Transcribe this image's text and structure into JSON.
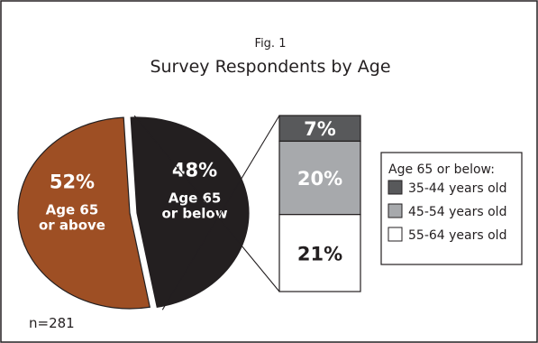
{
  "chart_data": {
    "type": "pie",
    "figure_label": "Fig. 1",
    "title": "Survey Respondents by Age",
    "note": "n=281",
    "slices": [
      {
        "percent_label": "52%",
        "value": 52,
        "label_line1": "Age 65",
        "label_line2": "or above",
        "color": "#9e4f24"
      },
      {
        "percent_label": "48%",
        "value": 48,
        "label_line1": "Age 65",
        "label_line2": "or below",
        "color": "#231f20"
      }
    ],
    "breakdown": {
      "of": "Age 65 or below",
      "segments": [
        {
          "percent_label": "7%",
          "value": 7,
          "category": "35-44 years old",
          "color": "#58595b",
          "text_color": "#ffffff"
        },
        {
          "percent_label": "20%",
          "value": 20,
          "category": "45-54 years old",
          "color": "#a7a9ac",
          "text_color": "#ffffff"
        },
        {
          "percent_label": "21%",
          "value": 21,
          "category": "55-64 years old",
          "color": "#ffffff",
          "text_color": "#231f20"
        }
      ]
    },
    "legend": {
      "title": "Age 65 or below:",
      "placement": "right"
    }
  }
}
